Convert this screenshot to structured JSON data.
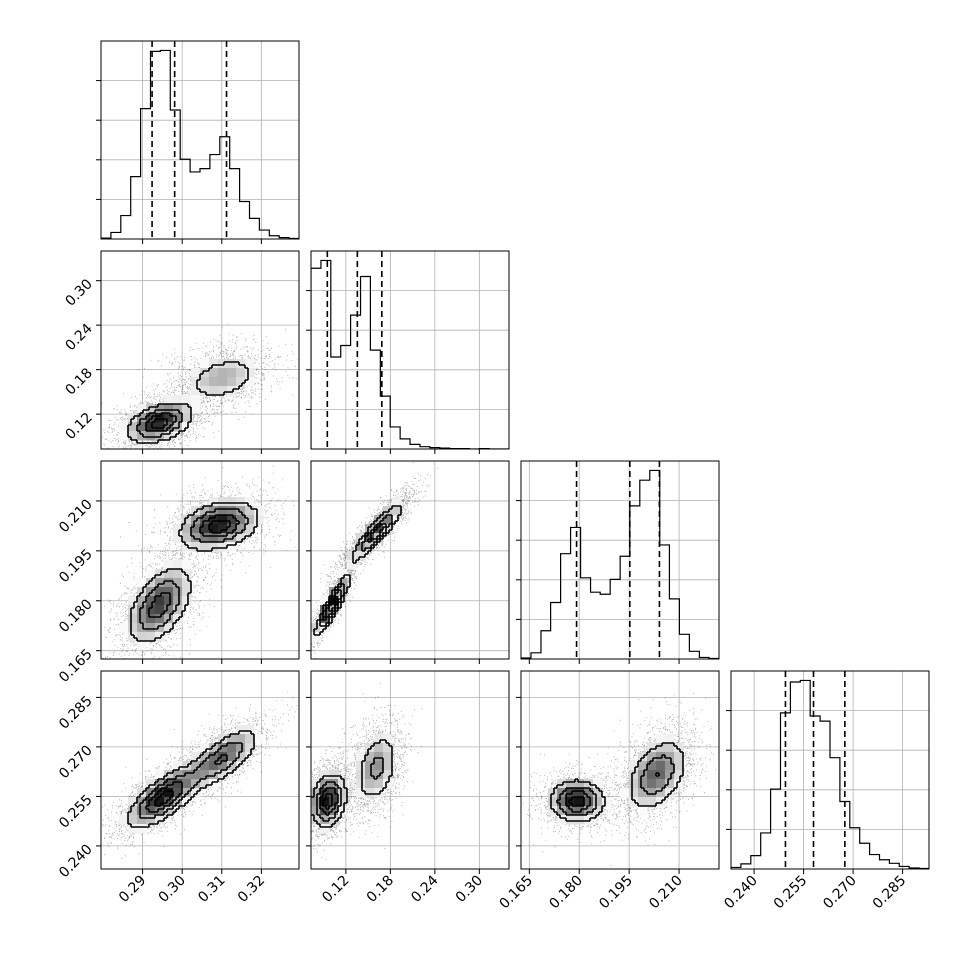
{
  "chart_data": {
    "type": "corner",
    "grid": true,
    "grid_color": "#b0b0b0",
    "histogram_color": "#000000",
    "quantile_line_style": "dashed",
    "n_parameters": 4,
    "parameters": [
      {
        "range": [
          0.2795,
          0.3295
        ],
        "ticks": [
          0.29,
          0.3,
          0.31,
          0.32
        ],
        "tick_labels": [
          "0.29",
          "0.30",
          "0.31",
          "0.32"
        ],
        "quantiles": [
          0.2924,
          0.2981,
          0.3112
        ]
      },
      {
        "range": [
          0.073,
          0.34
        ],
        "ticks": [
          0.12,
          0.18,
          0.24,
          0.3
        ],
        "tick_labels": [
          "0.12",
          "0.18",
          "0.24",
          "0.30"
        ],
        "quantiles": [
          0.095,
          0.1355,
          0.1685
        ]
      },
      {
        "range": [
          0.1625,
          0.222
        ],
        "ticks": [
          0.165,
          0.18,
          0.195,
          0.21
        ],
        "tick_labels": [
          "0.165",
          "0.180",
          "0.195",
          "0.210"
        ],
        "quantiles": [
          0.1792,
          0.1952,
          0.2041
        ]
      },
      {
        "range": [
          0.233,
          0.293
        ],
        "ticks": [
          0.24,
          0.255,
          0.27,
          0.285
        ],
        "tick_labels": [
          "0.240",
          "0.255",
          "0.270",
          "0.285"
        ],
        "quantiles": [
          0.2495,
          0.258,
          0.2675
        ]
      }
    ],
    "histograms": [
      {
        "parameter": 0,
        "bin_edges": [
          0.2795,
          0.282,
          0.2845,
          0.287,
          0.2895,
          0.292,
          0.2945,
          0.297,
          0.2995,
          0.302,
          0.3045,
          0.307,
          0.3095,
          0.312,
          0.3145,
          0.317,
          0.3195,
          0.322,
          0.3245,
          0.327,
          0.3295
        ],
        "counts": [
          2,
          14,
          50,
          133,
          278,
          400,
          402,
          275,
          170,
          143,
          150,
          180,
          218,
          150,
          80,
          44,
          19,
          7,
          3,
          1
        ]
      },
      {
        "parameter": 1,
        "bin_edges": [
          0.073,
          0.0864,
          0.0997,
          0.1131,
          0.1264,
          0.1398,
          0.1531,
          0.1665,
          0.1798,
          0.1932,
          0.2065,
          0.2199,
          0.2332,
          0.2466,
          0.2599,
          0.2733,
          0.2866,
          0.3,
          0.3133,
          0.3267,
          0.34
        ],
        "counts": [
          393,
          410,
          200,
          225,
          291,
          375,
          215,
          115,
          48,
          22,
          10,
          5,
          3,
          2,
          1,
          1,
          0,
          1,
          0,
          0
        ]
      },
      {
        "parameter": 2,
        "bin_edges": [
          0.1625,
          0.1655,
          0.1685,
          0.1714,
          0.1744,
          0.1774,
          0.1804,
          0.1834,
          0.1863,
          0.1893,
          0.1923,
          0.1952,
          0.1982,
          0.2012,
          0.2042,
          0.2071,
          0.2101,
          0.2131,
          0.2161,
          0.219,
          0.222
        ],
        "counts": [
          2,
          12,
          55,
          110,
          205,
          256,
          158,
          130,
          126,
          155,
          200,
          298,
          348,
          367,
          222,
          117,
          48,
          15,
          3,
          1
        ]
      },
      {
        "parameter": 3,
        "bin_edges": [
          0.233,
          0.236,
          0.239,
          0.242,
          0.245,
          0.248,
          0.251,
          0.254,
          0.257,
          0.26,
          0.263,
          0.266,
          0.269,
          0.272,
          0.275,
          0.278,
          0.281,
          0.284,
          0.287,
          0.29,
          0.293
        ],
        "counts": [
          3,
          10,
          26,
          70,
          155,
          303,
          363,
          366,
          297,
          287,
          216,
          131,
          80,
          50,
          28,
          18,
          11,
          5,
          2,
          1
        ]
      }
    ],
    "pair_plots": [
      {
        "x_parameter": 0,
        "y_parameter": 1,
        "density_modes": [
          {
            "x": 0.294,
            "y": 0.11,
            "sx": 0.0045,
            "sy": 0.015,
            "rho": 0.4,
            "weight": 0.62
          },
          {
            "x": 0.31,
            "y": 0.17,
            "sx": 0.0055,
            "sy": 0.018,
            "rho": 0.3,
            "weight": 0.38
          }
        ]
      },
      {
        "x_parameter": 0,
        "y_parameter": 2,
        "density_modes": [
          {
            "x": 0.294,
            "y": 0.179,
            "sx": 0.0045,
            "sy": 0.0065,
            "rho": 0.5,
            "weight": 0.5
          },
          {
            "x": 0.309,
            "y": 0.203,
            "sx": 0.0055,
            "sy": 0.004,
            "rho": 0.3,
            "weight": 0.5
          }
        ]
      },
      {
        "x_parameter": 0,
        "y_parameter": 3,
        "density_modes": [
          {
            "x": 0.295,
            "y": 0.255,
            "sx": 0.005,
            "sy": 0.005,
            "rho": 0.7,
            "weight": 0.58
          },
          {
            "x": 0.31,
            "y": 0.267,
            "sx": 0.005,
            "sy": 0.005,
            "rho": 0.7,
            "weight": 0.42
          }
        ]
      },
      {
        "x_parameter": 1,
        "y_parameter": 2,
        "density_modes": [
          {
            "x": 0.1,
            "y": 0.179,
            "sx": 0.013,
            "sy": 0.005,
            "rho": 0.9,
            "weight": 0.45
          },
          {
            "x": 0.16,
            "y": 0.201,
            "sx": 0.02,
            "sy": 0.005,
            "rho": 0.9,
            "weight": 0.55
          }
        ]
      },
      {
        "x_parameter": 1,
        "y_parameter": 3,
        "density_modes": [
          {
            "x": 0.095,
            "y": 0.254,
            "sx": 0.013,
            "sy": 0.0045,
            "rho": 0.2,
            "weight": 0.55
          },
          {
            "x": 0.16,
            "y": 0.264,
            "sx": 0.016,
            "sy": 0.006,
            "rho": 0.3,
            "weight": 0.45
          }
        ]
      },
      {
        "x_parameter": 2,
        "y_parameter": 3,
        "density_modes": [
          {
            "x": 0.179,
            "y": 0.254,
            "sx": 0.0045,
            "sy": 0.0035,
            "rho": 0.0,
            "weight": 0.45
          },
          {
            "x": 0.203,
            "y": 0.262,
            "sx": 0.005,
            "sy": 0.006,
            "rho": 0.4,
            "weight": 0.55
          }
        ]
      }
    ]
  }
}
